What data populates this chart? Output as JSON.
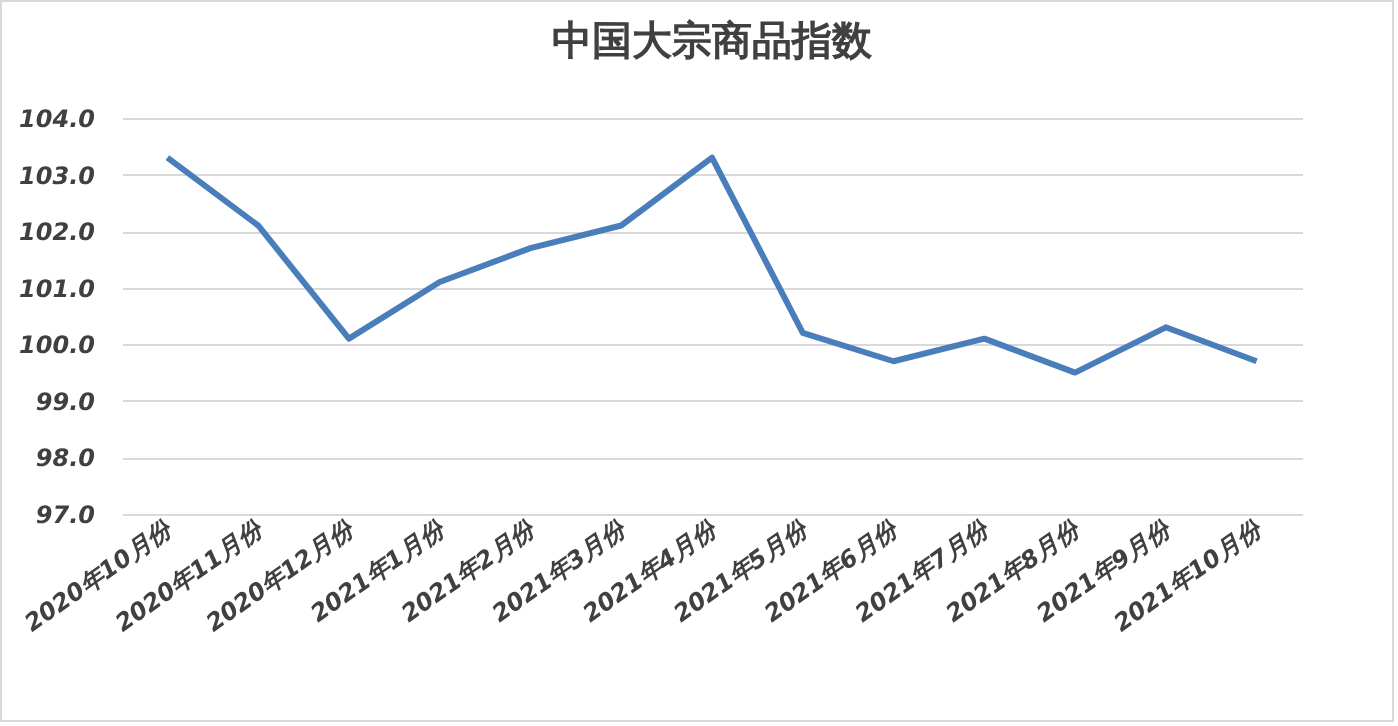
{
  "chart_data": {
    "type": "line",
    "title": "中国大宗商品指数",
    "categories": [
      "2020年10月份",
      "2020年11月份",
      "2020年12月份",
      "2021年1月份",
      "2021年2月份",
      "2021年3月份",
      "2021年4月份",
      "2021年5月份",
      "2021年6月份",
      "2021年7月份",
      "2021年8月份",
      "2021年9月份",
      "2021年10月份"
    ],
    "series": [
      {
        "color": "#4a7ebb",
        "values": [
          103.3,
          102.1,
          100.1,
          101.1,
          101.7,
          102.1,
          103.3,
          100.2,
          99.7,
          100.1,
          99.5,
          100.3,
          99.7
        ]
      }
    ],
    "ylim": [
      97,
      104
    ],
    "yticks": [
      {
        "value": 97,
        "label": "97.0"
      },
      {
        "value": 98,
        "label": "98.0"
      },
      {
        "value": 99,
        "label": "99.0"
      },
      {
        "value": 100,
        "label": "100.0"
      },
      {
        "value": 101,
        "label": "101.0"
      },
      {
        "value": 102,
        "label": "102.0"
      },
      {
        "value": 103,
        "label": "103.0"
      },
      {
        "value": 104,
        "label": "104.0"
      }
    ],
    "grid": "y",
    "legend": false,
    "marker": "none",
    "line_style": "solid"
  }
}
